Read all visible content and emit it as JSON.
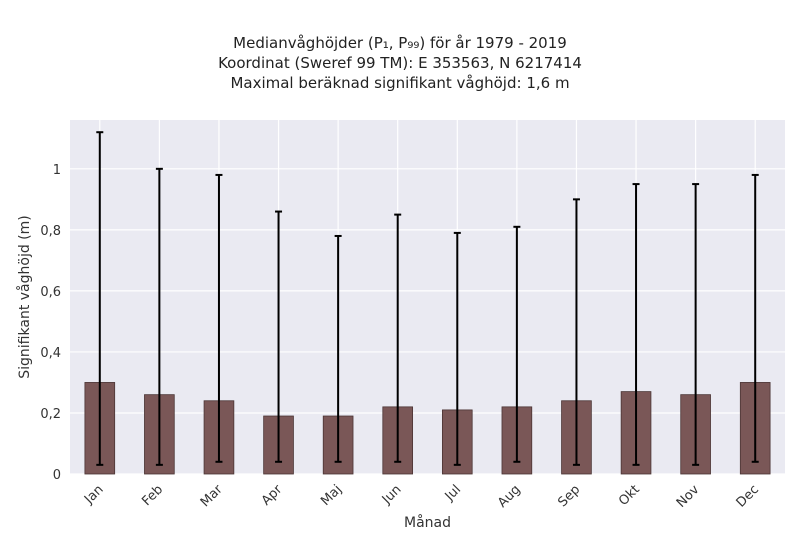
{
  "title_lines": [
    "Medianvåghöjder (P₁, P₉₉) för år 1979 - 2019",
    "Koordinat (Sweref 99 TM): E 353563, N 6217414",
    "Maximal beräknad signifikant våghöjd: 1,6 m"
  ],
  "chart_data": {
    "type": "bar",
    "title": "Medianvåghöjder (P₁, P₉₉) för år 1979 - 2019",
    "subtitle": [
      "Koordinat (Sweref 99 TM): E 353563, N 6217414",
      "Maximal beräknad signifikant våghöjd: 1,6 m"
    ],
    "xlabel": "Månad",
    "ylabel": "Signifikant våghöjd (m)",
    "categories": [
      "Jan",
      "Feb",
      "Mar",
      "Apr",
      "Maj",
      "Jun",
      "Jul",
      "Aug",
      "Sep",
      "Okt",
      "Nov",
      "Dec"
    ],
    "values": [
      0.3,
      0.26,
      0.24,
      0.19,
      0.19,
      0.22,
      0.21,
      0.22,
      0.24,
      0.27,
      0.26,
      0.3
    ],
    "error_low": [
      0.03,
      0.03,
      0.04,
      0.04,
      0.04,
      0.04,
      0.03,
      0.04,
      0.03,
      0.03,
      0.03,
      0.04
    ],
    "error_high": [
      1.12,
      1.0,
      0.98,
      0.86,
      0.78,
      0.85,
      0.79,
      0.81,
      0.9,
      0.95,
      0.95,
      0.98
    ],
    "ylim": [
      0,
      1.16
    ],
    "yticks": [
      0,
      0.2,
      0.4,
      0.6,
      0.8,
      1
    ],
    "ytick_labels": [
      "0",
      "0,2",
      "0,4",
      "0,6",
      "0,8",
      "1"
    ],
    "grid": true,
    "colors": {
      "bar_fill": "#7a5757",
      "bar_edge": "#4a3434",
      "error_bar": "#000000",
      "plot_background": "#eaeaf2",
      "grid": "#ffffff",
      "tick_text": "#333333"
    }
  }
}
